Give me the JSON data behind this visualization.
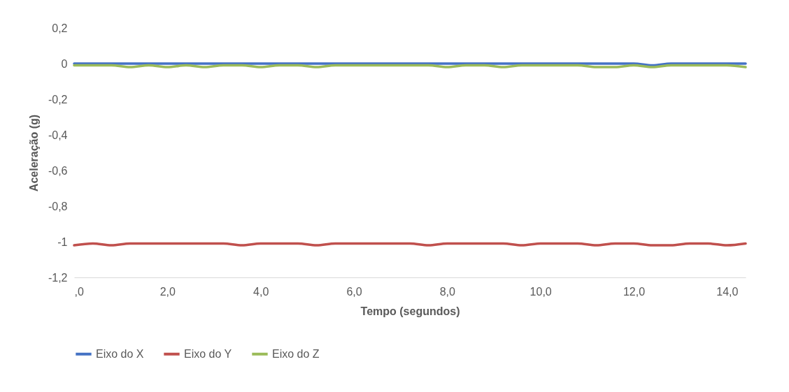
{
  "chart_data": {
    "type": "line",
    "xlabel": "Tempo (segundos)",
    "ylabel": "Aceleração (g)",
    "x": [
      0,
      0.4,
      0.8,
      1.2,
      1.6,
      2.0,
      2.4,
      2.8,
      3.2,
      3.6,
      4.0,
      4.4,
      4.8,
      5.2,
      5.6,
      6.0,
      6.4,
      6.8,
      7.2,
      7.6,
      8.0,
      8.4,
      8.8,
      9.2,
      9.6,
      10.0,
      10.4,
      10.8,
      11.2,
      11.6,
      12.0,
      12.4,
      12.8,
      13.2,
      13.6,
      14.0,
      14.4
    ],
    "series": [
      {
        "name": "Eixo do X",
        "color": "#4472c4",
        "values": [
          0,
          0,
          0,
          0,
          0,
          0,
          0,
          0,
          0,
          0,
          0,
          0,
          0,
          0,
          0,
          0,
          0,
          0,
          0,
          0,
          0,
          0,
          0,
          0,
          0,
          0,
          0,
          0,
          0,
          0,
          0,
          -0.01,
          0,
          0,
          0,
          0,
          0
        ]
      },
      {
        "name": "Eixo do Y",
        "color": "#c0504d",
        "values": [
          -1.02,
          -1.01,
          -1.02,
          -1.01,
          -1.01,
          -1.01,
          -1.01,
          -1.01,
          -1.01,
          -1.02,
          -1.01,
          -1.01,
          -1.01,
          -1.02,
          -1.01,
          -1.01,
          -1.01,
          -1.01,
          -1.01,
          -1.02,
          -1.01,
          -1.01,
          -1.01,
          -1.01,
          -1.02,
          -1.01,
          -1.01,
          -1.01,
          -1.02,
          -1.01,
          -1.01,
          -1.02,
          -1.02,
          -1.01,
          -1.01,
          -1.02,
          -1.01
        ]
      },
      {
        "name": "Eixo do Z",
        "color": "#9bbb59",
        "values": [
          -0.01,
          -0.01,
          -0.01,
          -0.02,
          -0.01,
          -0.02,
          -0.01,
          -0.02,
          -0.01,
          -0.01,
          -0.02,
          -0.01,
          -0.01,
          -0.02,
          -0.01,
          -0.01,
          -0.01,
          -0.01,
          -0.01,
          -0.01,
          -0.02,
          -0.01,
          -0.01,
          -0.02,
          -0.01,
          -0.01,
          -0.01,
          -0.01,
          -0.02,
          -0.02,
          -0.01,
          -0.02,
          -0.01,
          -0.01,
          -0.01,
          -0.01,
          -0.02
        ]
      }
    ],
    "xlim": [
      0,
      14.4
    ],
    "ylim": [
      -1.2,
      0.2
    ],
    "xticks": [
      {
        "value": 0,
        "label": ",0"
      },
      {
        "value": 2,
        "label": "2,0"
      },
      {
        "value": 4,
        "label": "4,0"
      },
      {
        "value": 6,
        "label": "6,0"
      },
      {
        "value": 8,
        "label": "8,0"
      },
      {
        "value": 10,
        "label": "10,0"
      },
      {
        "value": 12,
        "label": "12,0"
      },
      {
        "value": 14,
        "label": "14,0"
      }
    ],
    "yticks": [
      {
        "value": -1.2,
        "label": "-1,2"
      },
      -1,
      {
        "value": -0.8,
        "label": "-0,8"
      },
      {
        "value": -0.6,
        "label": "-0,6"
      },
      {
        "value": -0.4,
        "label": "-0,4"
      },
      {
        "value": -0.2,
        "label": "-0,2"
      },
      0,
      {
        "value": 0.2,
        "label": "0,2"
      }
    ],
    "legend": "bottom"
  }
}
